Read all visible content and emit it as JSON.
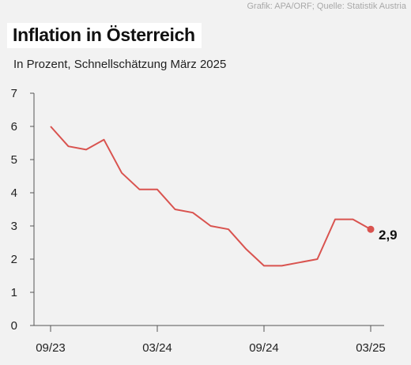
{
  "credit": "Grafik: APA/ORF; Quelle: Statistik Austria",
  "chart_data": {
    "type": "line",
    "title": "Inflation in Österreich",
    "subtitle": "In Prozent, Schnellschätzung März 2025",
    "xlabel": "",
    "ylabel": "",
    "ylim": [
      0,
      7
    ],
    "yticks": [
      "0",
      "1",
      "2",
      "3",
      "4",
      "5",
      "6",
      "7"
    ],
    "xticks": [
      {
        "label": "09/23",
        "index": 0
      },
      {
        "label": "03/24",
        "index": 6
      },
      {
        "label": "09/24",
        "index": 12
      },
      {
        "label": "03/25",
        "index": 18
      }
    ],
    "grid": false,
    "series": [
      {
        "name": "",
        "color": "#d9534f",
        "x": [
          "09/23",
          "10/23",
          "11/23",
          "12/23",
          "01/24",
          "02/24",
          "03/24",
          "04/24",
          "05/24",
          "06/24",
          "07/24",
          "08/24",
          "09/24",
          "10/24",
          "11/24",
          "12/24",
          "01/25",
          "02/25",
          "03/25"
        ],
        "values": [
          6.0,
          5.4,
          5.3,
          5.6,
          4.6,
          4.1,
          4.1,
          3.5,
          3.4,
          3.0,
          2.9,
          2.3,
          1.8,
          1.8,
          1.9,
          2.0,
          3.2,
          3.2,
          2.9
        ]
      }
    ],
    "end_label": "2,9"
  }
}
